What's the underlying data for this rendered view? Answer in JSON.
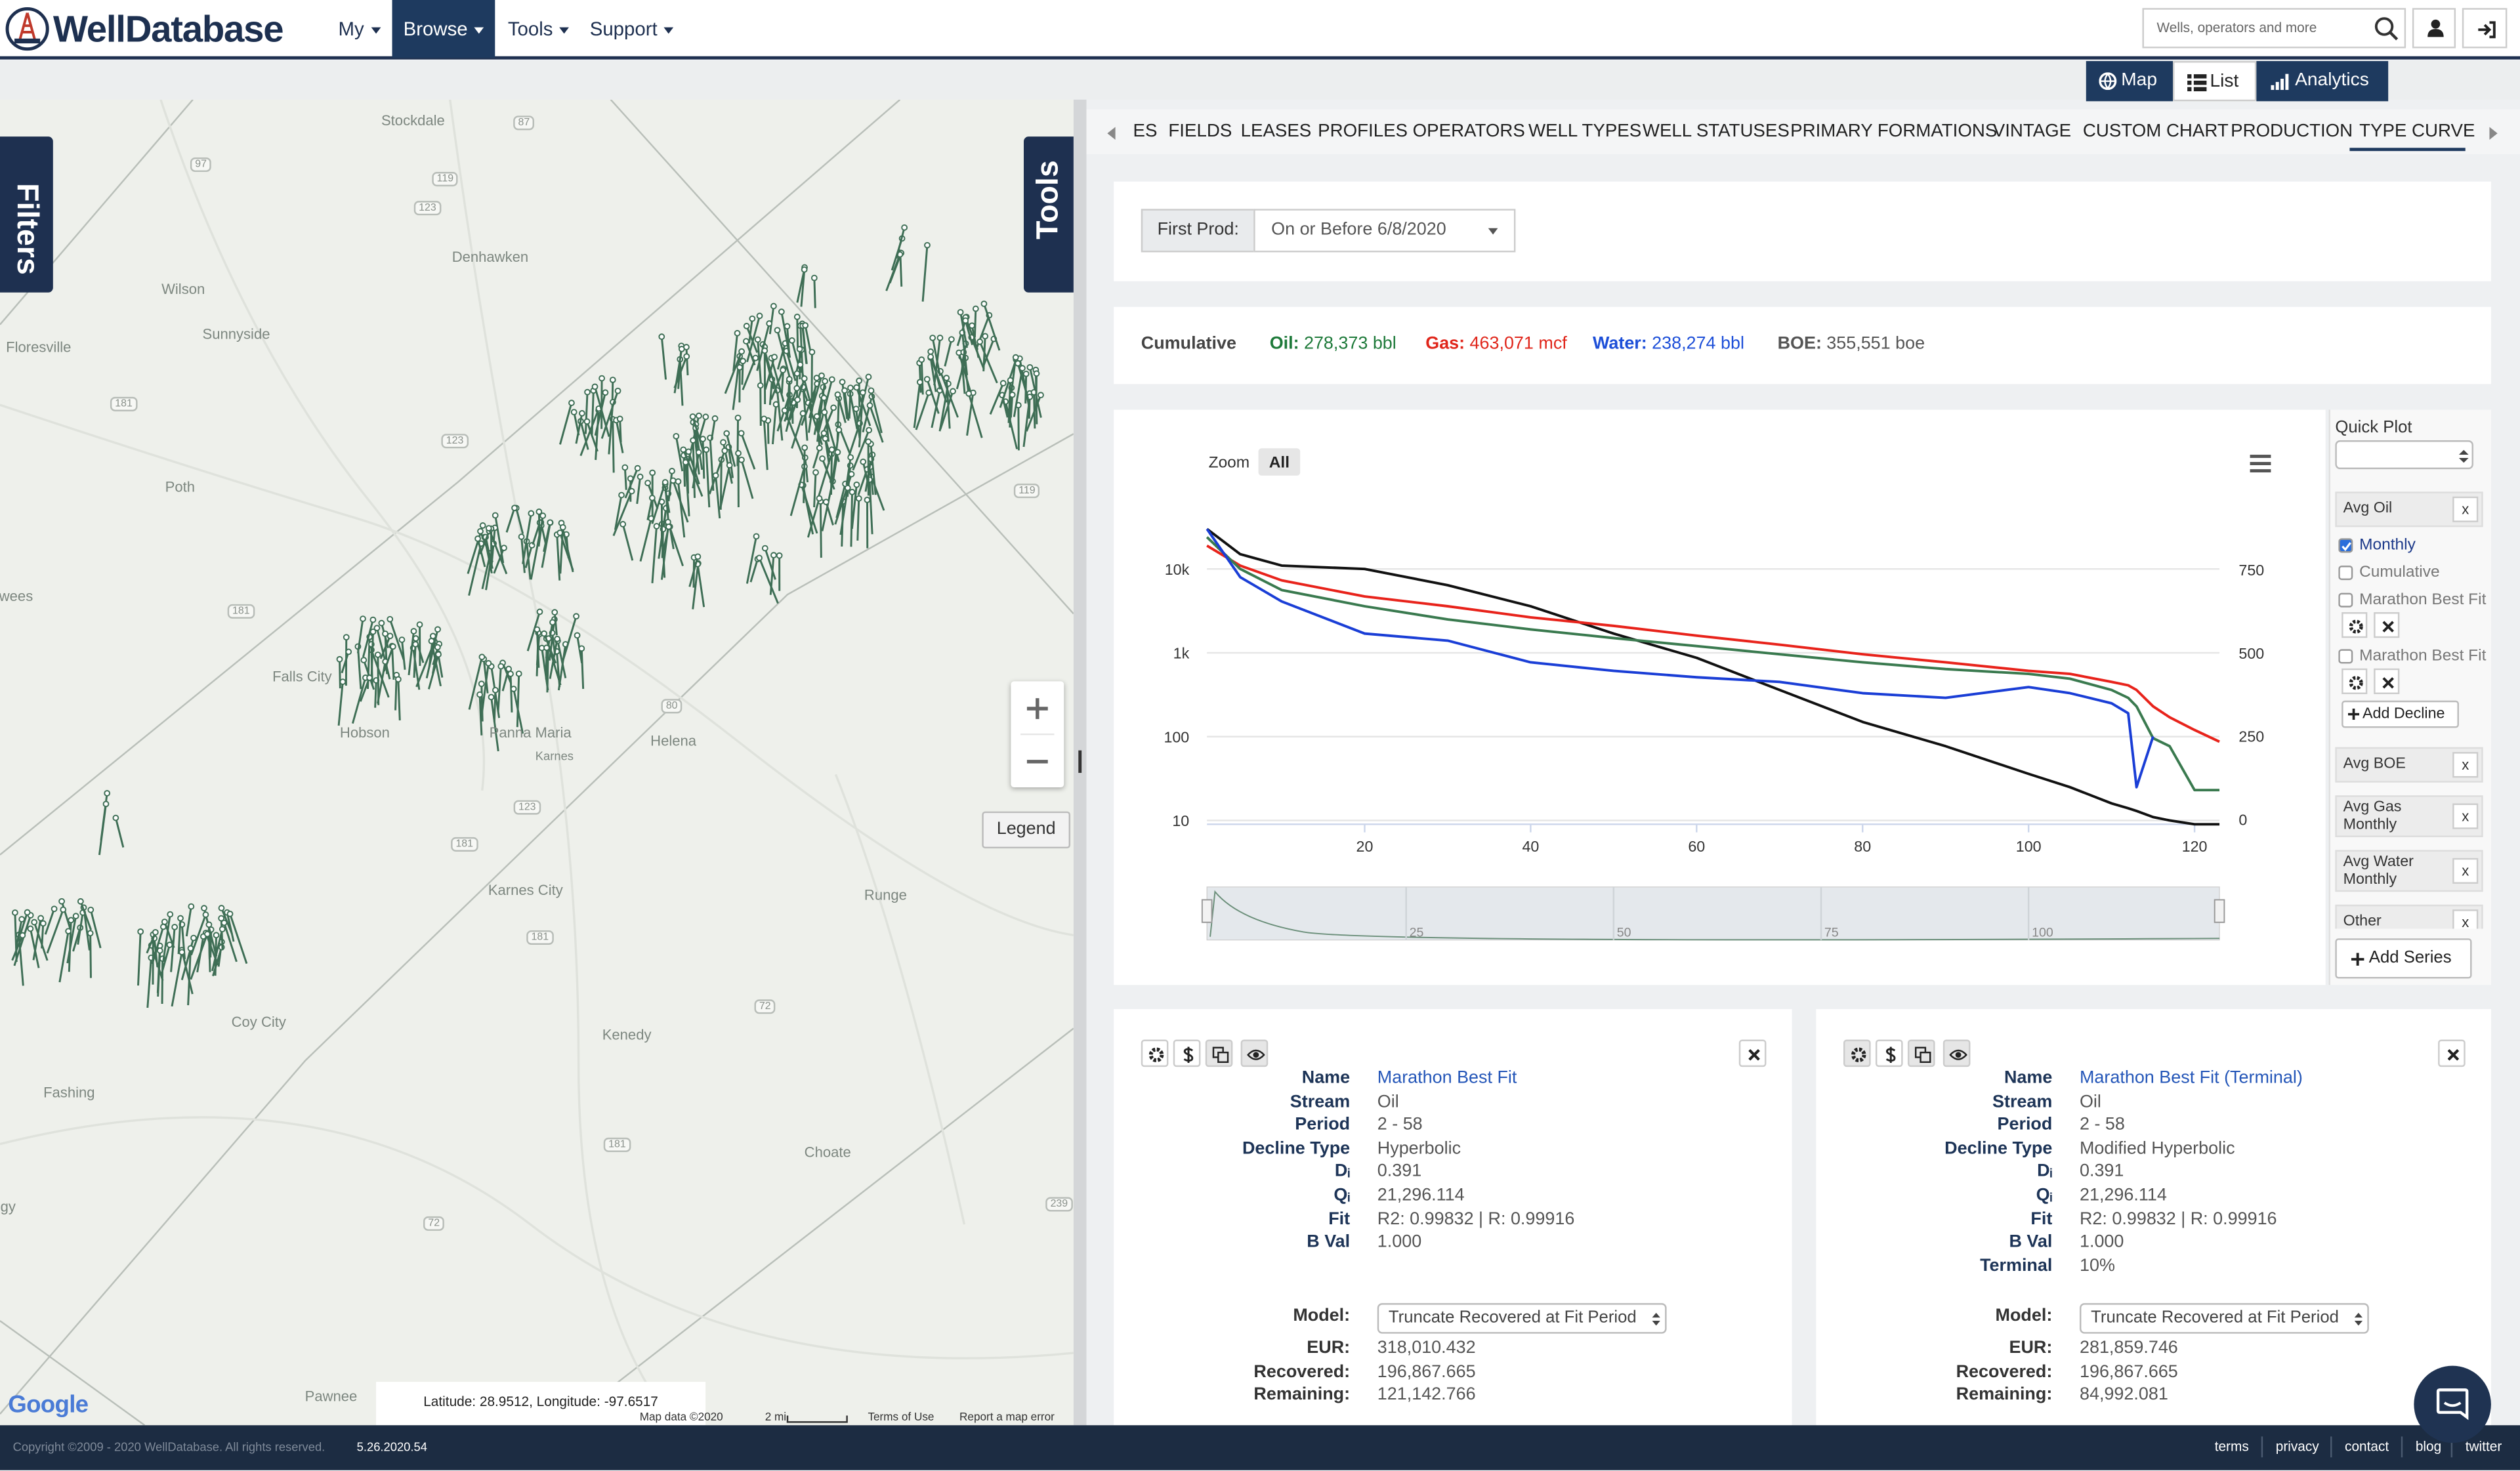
{
  "header": {
    "logo": "WellDatabase",
    "nav": [
      "My",
      "Browse",
      "Tools",
      "Support"
    ],
    "active_nav": 1,
    "search_placeholder": "Wells, operators and more"
  },
  "view_toggle": {
    "buttons": [
      "Map",
      "List",
      "Analytics"
    ],
    "dark": [
      true,
      false,
      true
    ]
  },
  "map": {
    "filters_tab": "Filters",
    "tools_tab": "Tools",
    "places": [
      "Stockdale",
      "Denhawken",
      "Wilson",
      "Sunnyside",
      "Floresville",
      "Poth",
      "Falls City",
      "Hobson",
      "Panna Maria",
      "Karnes",
      "Helena",
      "Karnes City",
      "Runge",
      "Kenedy",
      "Coy City",
      "Fashing",
      "Choate",
      "Pawnee",
      "wees",
      "gy"
    ],
    "roads": [
      "87",
      "97",
      "119",
      "123",
      "181",
      "123",
      "119",
      "181",
      "80",
      "123",
      "181",
      "181",
      "72",
      "181",
      "239",
      "72"
    ],
    "legend_button": "Legend",
    "coordinates": "Latitude: 28.9512, Longitude: -97.6517",
    "attribution": [
      "Map data ©2020",
      "2 mi",
      "Terms of Use",
      "Report a map error"
    ],
    "google": "Google"
  },
  "tabs": {
    "items": [
      "ES",
      "FIELDS",
      "LEASES",
      "PROFILES",
      "OPERATORS",
      "WELL TYPES",
      "WELL STATUSES",
      "PRIMARY FORMATIONS",
      "VINTAGE",
      "CUSTOM CHART",
      "PRODUCTION",
      "TYPE CURVE"
    ],
    "active": 11
  },
  "filter": {
    "label": "First Prod:",
    "value": "On or Before 6/8/2020"
  },
  "cumulative": {
    "title": "Cumulative",
    "items": [
      {
        "label": "Oil:",
        "value": "278,373 bbl",
        "color": "#1e7a3a"
      },
      {
        "label": "Gas:",
        "value": "463,071 mcf",
        "color": "#e0261b"
      },
      {
        "label": "Water:",
        "value": "238,274 bbl",
        "color": "#1d4fd8"
      },
      {
        "label": "BOE:",
        "value": "355,551 boe",
        "color": "#555555"
      }
    ]
  },
  "chart_data": {
    "type": "line",
    "zoom_label": "Zoom",
    "zoom_all": "All",
    "x": [
      1,
      5,
      10,
      20,
      30,
      40,
      50,
      60,
      70,
      80,
      90,
      100,
      105,
      110,
      112,
      113,
      115,
      117,
      120,
      123
    ],
    "xlim": [
      1,
      123
    ],
    "xticks": [
      20,
      40,
      60,
      80,
      100,
      120
    ],
    "log_y": true,
    "ylim": [
      9,
      80000
    ],
    "yticks": [
      {
        "value": 10000,
        "label": "10k"
      },
      {
        "value": 1000,
        "label": "1k"
      },
      100,
      10
    ],
    "y2lim": [
      -15,
      980
    ],
    "y2ticks": [
      750,
      500,
      250,
      0
    ],
    "navigator_ticks": [
      25,
      50,
      75,
      100
    ],
    "grid": true,
    "series": [
      {
        "color": "#111111",
        "values": [
          30000,
          15000,
          11000,
          10000,
          6400,
          3600,
          1700,
          870,
          360,
          150,
          77,
          36,
          25,
          16,
          14,
          13,
          11,
          10,
          9,
          9
        ]
      },
      {
        "color": "#e8231b",
        "values": [
          19000,
          11000,
          7300,
          4700,
          3600,
          2650,
          2100,
          1600,
          1250,
          960,
          770,
          610,
          560,
          450,
          410,
          360,
          230,
          170,
          120,
          87
        ]
      },
      {
        "color": "#3a7a4f",
        "values": [
          24000,
          10000,
          5600,
          3600,
          2500,
          1900,
          1500,
          1200,
          960,
          770,
          640,
          560,
          490,
          360,
          290,
          230,
          96,
          77,
          23,
          23
        ]
      },
      {
        "color": "#1a3ed6",
        "values": [
          30000,
          8000,
          4100,
          1700,
          1400,
          770,
          610,
          510,
          450,
          330,
          290,
          390,
          330,
          250,
          190,
          25,
          100,
          null,
          null,
          null
        ]
      }
    ]
  },
  "quick_plot": {
    "title": "Quick Plot",
    "close": "x",
    "groups": [
      {
        "name": "Avg Oil",
        "options": [
          {
            "label": "Monthly",
            "checked": true
          },
          {
            "label": "Cumulative",
            "checked": false
          },
          {
            "label": "Marathon Best Fit",
            "checked": false,
            "tools": true
          },
          {
            "label": "Marathon Best Fit",
            "checked": false,
            "tools": true
          }
        ],
        "add": "Add Decline"
      },
      {
        "name": "Avg BOE"
      },
      {
        "name": "Avg Gas Monthly"
      },
      {
        "name": "Avg Water Monthly"
      },
      {
        "name": "Other"
      }
    ],
    "add_series": "Add Series"
  },
  "cards": [
    {
      "fields": [
        [
          "Name",
          "Marathon Best Fit"
        ],
        [
          "Stream",
          "Oil"
        ],
        [
          "Period",
          "2 - 58"
        ],
        [
          "Decline Type",
          "Hyperbolic"
        ],
        [
          "Dᵢ",
          "0.391"
        ],
        [
          "Qᵢ",
          "21,296.114"
        ],
        [
          "Fit",
          "R2: 0.99832 | R: 0.99916"
        ],
        [
          "B Val",
          "1.000"
        ]
      ],
      "model_label": "Model:",
      "model": "Truncate Recovered at Fit Period",
      "results": [
        [
          "EUR:",
          "318,010.432"
        ],
        [
          "Recovered:",
          "196,867.665"
        ],
        [
          "Remaining:",
          "121,142.766"
        ]
      ]
    },
    {
      "fields": [
        [
          "Name",
          "Marathon Best Fit (Terminal)"
        ],
        [
          "Stream",
          "Oil"
        ],
        [
          "Period",
          "2 - 58"
        ],
        [
          "Decline Type",
          "Modified Hyperbolic"
        ],
        [
          "Dᵢ",
          "0.391"
        ],
        [
          "Qᵢ",
          "21,296.114"
        ],
        [
          "Fit",
          "R2: 0.99832 | R: 0.99916"
        ],
        [
          "B Val",
          "1.000"
        ],
        [
          "Terminal",
          "10%"
        ]
      ],
      "model_label": "Model:",
      "model": "Truncate Recovered at Fit Period",
      "results": [
        [
          "EUR:",
          "281,859.746"
        ],
        [
          "Recovered:",
          "196,867.665"
        ],
        [
          "Remaining:",
          "84,992.081"
        ]
      ]
    }
  ],
  "footer": {
    "copyright": "Copyright ©2009 - 2020 WellDatabase. All rights reserved.",
    "version": "5.26.2020.54",
    "links": [
      "terms",
      "privacy",
      "contact",
      "blog",
      "twitter"
    ]
  }
}
